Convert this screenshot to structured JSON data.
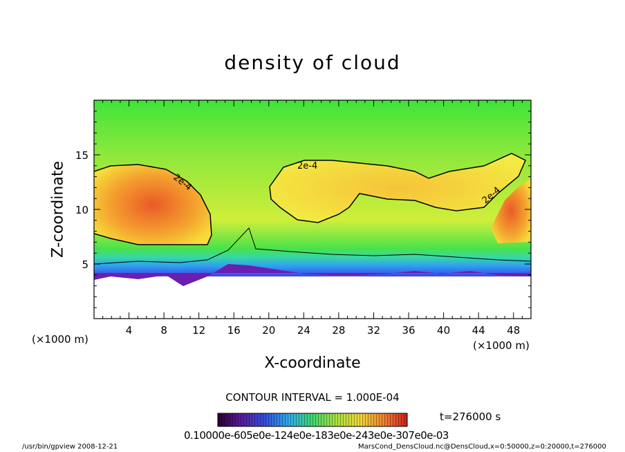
{
  "chart_data": {
    "type": "heatmap",
    "title": "density of cloud",
    "xlabel": "X-coordinate",
    "ylabel": "Z-coordinate",
    "x_unit": "(×1000 m)",
    "z_unit": "(×1000 m)",
    "xlim": [
      0,
      50
    ],
    "ylim": [
      0,
      20
    ],
    "x_ticks": [
      "4",
      "8",
      "12",
      "16",
      "20",
      "24",
      "28",
      "32",
      "36",
      "40",
      "44",
      "48"
    ],
    "y_ticks": [
      "5",
      "10",
      "15"
    ],
    "contour_label": "2e-4",
    "contour_interval": "CONTOUR INTERVAL = 1.000E-04",
    "time": "t=276000 s",
    "colorbar_ticks": "0.10000e-605e0e-124e0e-183e0e-243e0e-307e0e-03"
  },
  "footer": {
    "left": "/usr/bin/gpview   2008-12-21",
    "right": "MarsCond_DensCloud.nc@DensCloud,x=0:50000,z=0:20000,t=276000"
  },
  "colors": {
    "background_field": "#44e23a",
    "high_density": "#e8642a",
    "low_density": "#6a1fb0",
    "contour_line": "#000000"
  }
}
